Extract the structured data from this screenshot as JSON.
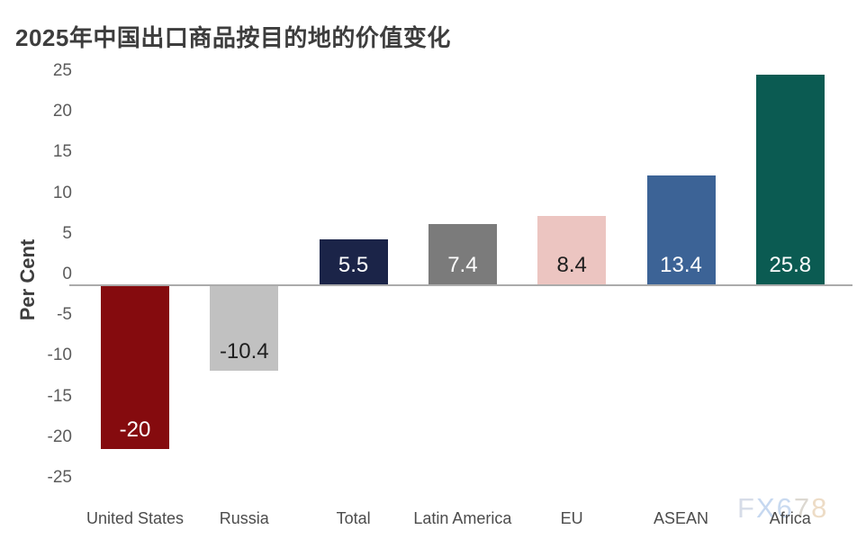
{
  "chart_data": {
    "type": "bar",
    "title": "2025年中国出口商品按目的地的价值变化",
    "ylabel": "Per Cent",
    "xlabel": "",
    "categories": [
      "United States",
      "Russia",
      "Total",
      "Latin America",
      "EU",
      "ASEAN",
      "Africa"
    ],
    "values": [
      -20,
      -10.4,
      5.5,
      7.4,
      8.4,
      13.4,
      25.8
    ],
    "value_labels": [
      "-20",
      "-10.4",
      "5.5",
      "7.4",
      "8.4",
      "13.4",
      "25.8"
    ],
    "bar_colors": [
      "#850b0e",
      "#c1c1c1",
      "#1b2448",
      "#7b7b7b",
      "#ecc5c1",
      "#3c6396",
      "#0b5b52"
    ],
    "value_label_colors": [
      "#ffffff",
      "#1e1e1e",
      "#ffffff",
      "#ffffff",
      "#1e1e1e",
      "#ffffff",
      "#ffffff"
    ],
    "yticks": [
      25,
      20,
      15,
      10,
      5,
      0,
      -5,
      -10,
      -15,
      -20,
      -25
    ],
    "ylim": [
      -25,
      25
    ],
    "grid": false,
    "legend": false,
    "baseline_color": "#ababab",
    "title_color": "#3d3d3d",
    "tick_color": "#5c5c5c",
    "category_label_color": "#4c4c4c"
  },
  "watermark": {
    "text": "FX678",
    "chars": [
      {
        "ch": "F",
        "color": "#d6dce8"
      },
      {
        "ch": "X",
        "color": "#c6d8f0"
      },
      {
        "ch": "6",
        "color": "#c9daf0"
      },
      {
        "ch": "7",
        "color": "#dcd8d1"
      },
      {
        "ch": "8",
        "color": "#eddcc6"
      }
    ]
  }
}
